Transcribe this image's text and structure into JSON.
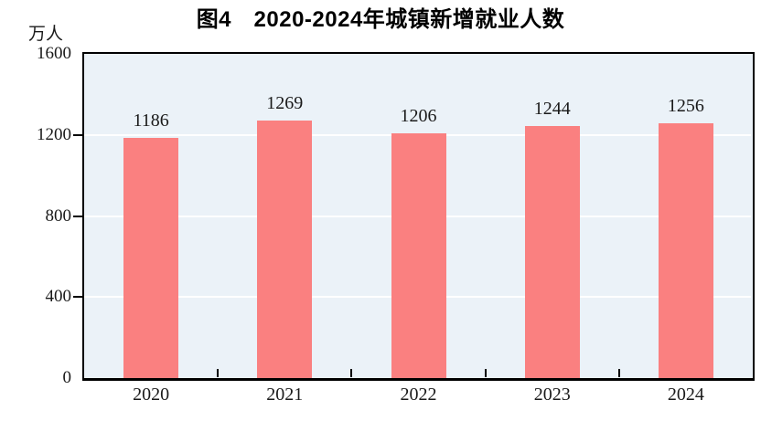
{
  "chart_data": {
    "type": "bar",
    "title": "图4　2020-2024年城镇新增就业人数",
    "unit_label": "万人",
    "categories": [
      "2020",
      "2021",
      "2022",
      "2023",
      "2024"
    ],
    "values": [
      1186,
      1269,
      1206,
      1244,
      1256
    ],
    "xlabel": "",
    "ylabel": "万人",
    "ylim": [
      0,
      1600
    ],
    "yticks": [
      0,
      400,
      800,
      1200,
      1600
    ],
    "grid": true,
    "legend": false,
    "colors": {
      "bar": "#FA8080",
      "plot_bg": "#EBF2F8",
      "gridline": "#FFFFFF",
      "axis": "#000000",
      "text": "#1A1A1A"
    }
  }
}
